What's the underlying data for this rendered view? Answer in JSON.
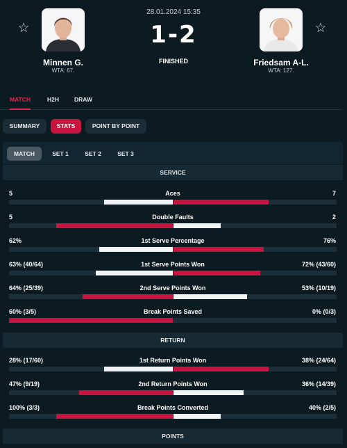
{
  "match": {
    "date": "28.01.2024 15:35",
    "score": "1-2",
    "status": "FINISHED",
    "star_icon": "star-outline-icon"
  },
  "players": [
    {
      "name": "Minnen G.",
      "rank": "WTA: 67."
    },
    {
      "name": "Friedsam A-L.",
      "rank": "WTA: 127."
    }
  ],
  "tabs": [
    "MATCH",
    "H2H",
    "DRAW"
  ],
  "subtabs": [
    "SUMMARY",
    "STATS",
    "POINT BY POINT"
  ],
  "sets": [
    "MATCH",
    "SET 1",
    "SET 2",
    "SET 3"
  ],
  "sections": {
    "service": "SERVICE",
    "return": "RETURN",
    "points": "POINTS"
  },
  "colors": {
    "accent": "#c8143f",
    "background": "#0c1a22"
  },
  "stats": {
    "service": [
      {
        "name": "Aces",
        "left": "5",
        "right": "7",
        "left_frac": 0.42,
        "right_frac": 0.58,
        "winner": "right"
      },
      {
        "name": "Double Faults",
        "left": "5",
        "right": "2",
        "left_frac": 0.71,
        "right_frac": 0.29,
        "winner": "left"
      },
      {
        "name": "1st Serve Percentage",
        "left": "62%",
        "right": "76%",
        "left_frac": 0.45,
        "right_frac": 0.55,
        "winner": "right"
      },
      {
        "name": "1st Serve Points Won",
        "left": "63% (40/64)",
        "right": "72% (43/60)",
        "left_frac": 0.47,
        "right_frac": 0.53,
        "winner": "right"
      },
      {
        "name": "2nd Serve Points Won",
        "left": "64% (25/39)",
        "right": "53% (10/19)",
        "left_frac": 0.55,
        "right_frac": 0.45,
        "winner": "left"
      },
      {
        "name": "Break Points Saved",
        "left": "60% (3/5)",
        "right": "0% (0/3)",
        "left_frac": 1.0,
        "right_frac": 0.0,
        "winner": "left"
      }
    ],
    "return": [
      {
        "name": "1st Return Points Won",
        "left": "28% (17/60)",
        "right": "38% (24/64)",
        "left_frac": 0.42,
        "right_frac": 0.58,
        "winner": "right"
      },
      {
        "name": "2nd Return Points Won",
        "left": "47% (9/19)",
        "right": "36% (14/39)",
        "left_frac": 0.57,
        "right_frac": 0.43,
        "winner": "left"
      },
      {
        "name": "Break Points Converted",
        "left": "100% (3/3)",
        "right": "40% (2/5)",
        "left_frac": 0.71,
        "right_frac": 0.29,
        "winner": "left"
      }
    ]
  }
}
